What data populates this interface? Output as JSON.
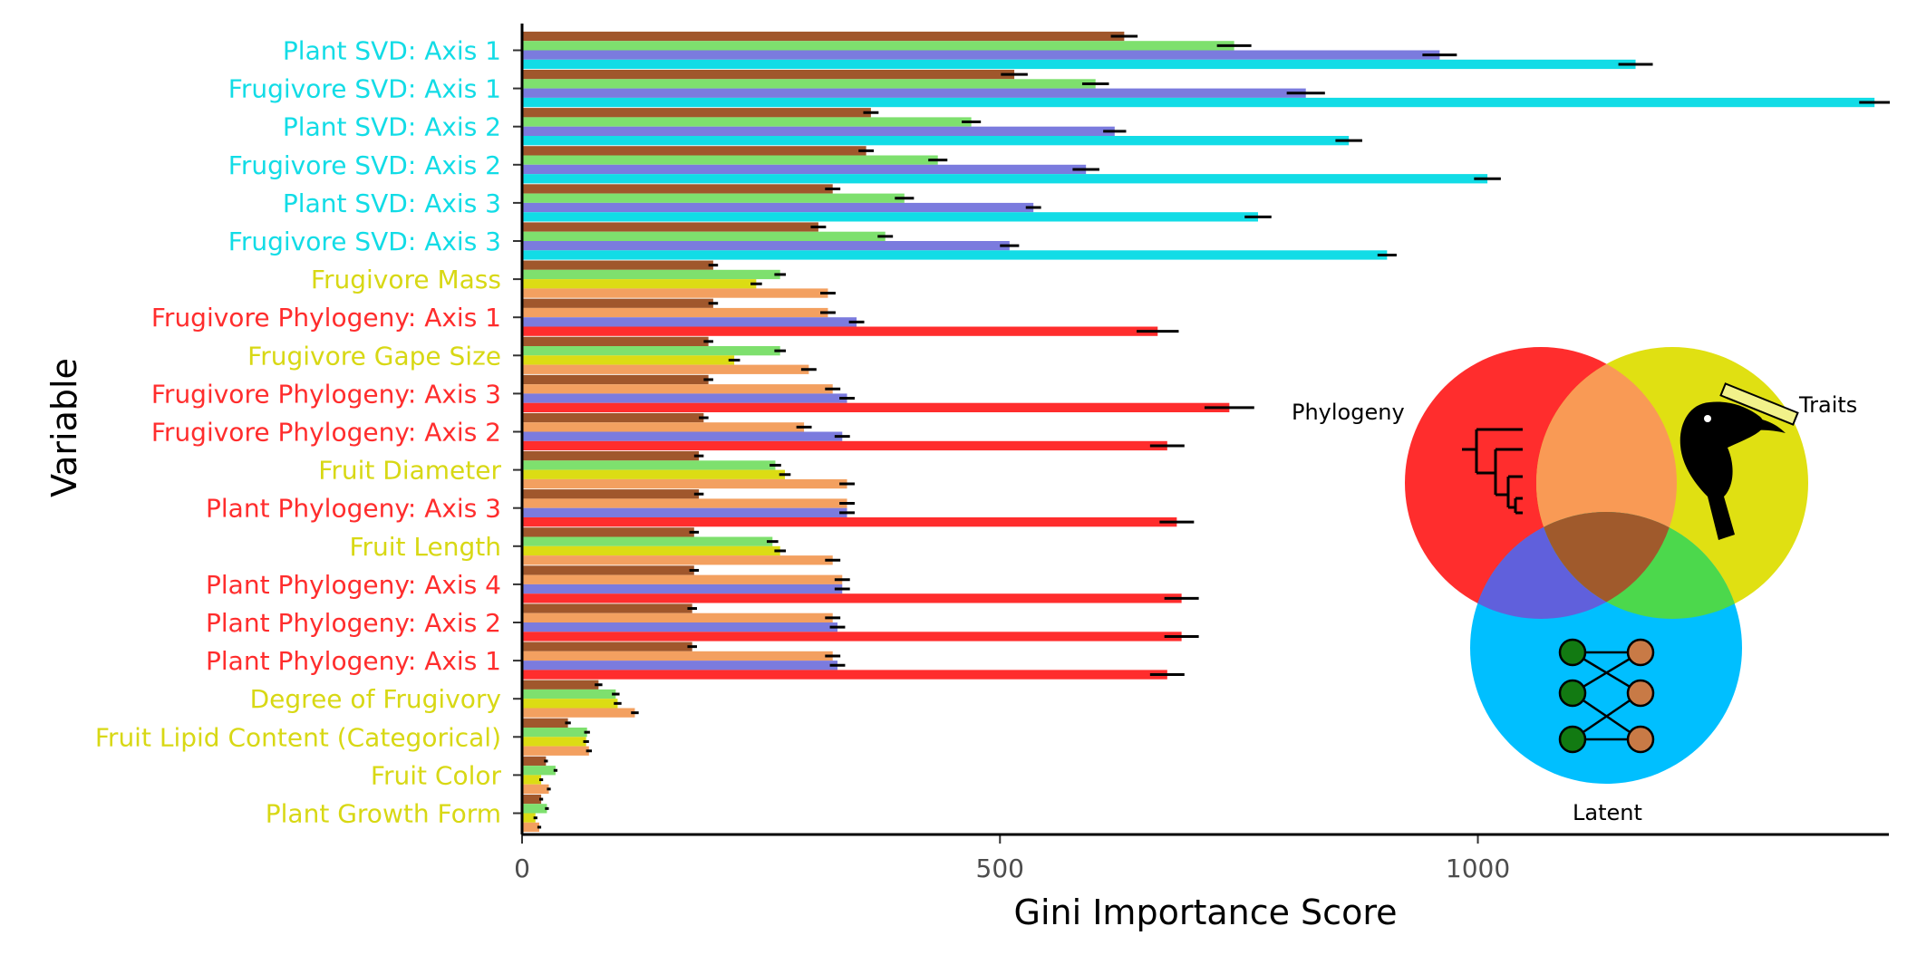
{
  "chart_data": {
    "type": "bar",
    "orientation": "horizontal",
    "xlabel": "Gini Importance Score",
    "ylabel": "Variable",
    "xlim": [
      0,
      1430
    ],
    "xticks": [
      0,
      500,
      1000
    ],
    "grid": false,
    "model_colors": [
      "#a0572c",
      "#7ee06e",
      "#dcdc14",
      "#f3a060",
      "#7b7bde",
      "#ff2d2d",
      "#12dce6"
    ],
    "group_colors": {
      "svd": "#12dce6",
      "trait": "#d8d814",
      "phylogeny": "#ff2d2d"
    },
    "variables": [
      {
        "label": "Plant SVD: Axis 1",
        "group": "svd",
        "bars": [
          {
            "m": 0,
            "v": 630,
            "e": 14
          },
          {
            "m": 1,
            "v": 745,
            "e": 18
          },
          {
            "m": 4,
            "v": 960,
            "e": 18
          },
          {
            "m": 6,
            "v": 1165,
            "e": 18
          }
        ]
      },
      {
        "label": "Frugivore SVD: Axis 1",
        "group": "svd",
        "bars": [
          {
            "m": 0,
            "v": 515,
            "e": 14
          },
          {
            "m": 1,
            "v": 600,
            "e": 14
          },
          {
            "m": 4,
            "v": 820,
            "e": 20
          },
          {
            "m": 6,
            "v": 1415,
            "e": 16
          }
        ]
      },
      {
        "label": "Plant SVD: Axis 2",
        "group": "svd",
        "bars": [
          {
            "m": 0,
            "v": 365,
            "e": 8
          },
          {
            "m": 1,
            "v": 470,
            "e": 10
          },
          {
            "m": 4,
            "v": 620,
            "e": 12
          },
          {
            "m": 6,
            "v": 865,
            "e": 14
          }
        ]
      },
      {
        "label": "Frugivore SVD: Axis 2",
        "group": "svd",
        "bars": [
          {
            "m": 0,
            "v": 360,
            "e": 8
          },
          {
            "m": 1,
            "v": 435,
            "e": 10
          },
          {
            "m": 4,
            "v": 590,
            "e": 14
          },
          {
            "m": 6,
            "v": 1010,
            "e": 14
          }
        ]
      },
      {
        "label": "Plant SVD: Axis 3",
        "group": "svd",
        "bars": [
          {
            "m": 0,
            "v": 325,
            "e": 8
          },
          {
            "m": 1,
            "v": 400,
            "e": 10
          },
          {
            "m": 4,
            "v": 535,
            "e": 8
          },
          {
            "m": 6,
            "v": 770,
            "e": 14
          }
        ]
      },
      {
        "label": "Frugivore SVD: Axis 3",
        "group": "svd",
        "bars": [
          {
            "m": 0,
            "v": 310,
            "e": 8
          },
          {
            "m": 1,
            "v": 380,
            "e": 8
          },
          {
            "m": 4,
            "v": 510,
            "e": 10
          },
          {
            "m": 6,
            "v": 905,
            "e": 10
          }
        ]
      },
      {
        "label": "Frugivore Mass",
        "group": "trait",
        "bars": [
          {
            "m": 0,
            "v": 200,
            "e": 5
          },
          {
            "m": 1,
            "v": 270,
            "e": 6
          },
          {
            "m": 2,
            "v": 245,
            "e": 6
          },
          {
            "m": 3,
            "v": 320,
            "e": 8
          }
        ]
      },
      {
        "label": "Frugivore Phylogeny: Axis 1",
        "group": "phylogeny",
        "bars": [
          {
            "m": 0,
            "v": 200,
            "e": 5
          },
          {
            "m": 3,
            "v": 320,
            "e": 8
          },
          {
            "m": 4,
            "v": 350,
            "e": 8
          },
          {
            "m": 5,
            "v": 665,
            "e": 22
          }
        ]
      },
      {
        "label": "Frugivore Gape Size",
        "group": "trait",
        "bars": [
          {
            "m": 0,
            "v": 195,
            "e": 5
          },
          {
            "m": 1,
            "v": 270,
            "e": 6
          },
          {
            "m": 2,
            "v": 222,
            "e": 6
          },
          {
            "m": 3,
            "v": 300,
            "e": 8
          }
        ]
      },
      {
        "label": "Frugivore Phylogeny: Axis 3",
        "group": "phylogeny",
        "bars": [
          {
            "m": 0,
            "v": 195,
            "e": 5
          },
          {
            "m": 3,
            "v": 325,
            "e": 8
          },
          {
            "m": 4,
            "v": 340,
            "e": 8
          },
          {
            "m": 5,
            "v": 740,
            "e": 26
          }
        ]
      },
      {
        "label": "Frugivore Phylogeny: Axis 2",
        "group": "phylogeny",
        "bars": [
          {
            "m": 0,
            "v": 190,
            "e": 5
          },
          {
            "m": 3,
            "v": 295,
            "e": 8
          },
          {
            "m": 4,
            "v": 335,
            "e": 8
          },
          {
            "m": 5,
            "v": 675,
            "e": 18
          }
        ]
      },
      {
        "label": "Fruit Diameter",
        "group": "trait",
        "bars": [
          {
            "m": 0,
            "v": 185,
            "e": 5
          },
          {
            "m": 1,
            "v": 265,
            "e": 6
          },
          {
            "m": 2,
            "v": 275,
            "e": 6
          },
          {
            "m": 3,
            "v": 340,
            "e": 8
          }
        ]
      },
      {
        "label": "Plant Phylogeny: Axis 3",
        "group": "phylogeny",
        "bars": [
          {
            "m": 0,
            "v": 185,
            "e": 5
          },
          {
            "m": 3,
            "v": 340,
            "e": 8
          },
          {
            "m": 4,
            "v": 340,
            "e": 8
          },
          {
            "m": 5,
            "v": 685,
            "e": 18
          }
        ]
      },
      {
        "label": "Fruit Length",
        "group": "trait",
        "bars": [
          {
            "m": 0,
            "v": 180,
            "e": 5
          },
          {
            "m": 1,
            "v": 262,
            "e": 6
          },
          {
            "m": 2,
            "v": 270,
            "e": 6
          },
          {
            "m": 3,
            "v": 325,
            "e": 8
          }
        ]
      },
      {
        "label": "Plant Phylogeny: Axis 4",
        "group": "phylogeny",
        "bars": [
          {
            "m": 0,
            "v": 180,
            "e": 5
          },
          {
            "m": 3,
            "v": 335,
            "e": 8
          },
          {
            "m": 4,
            "v": 335,
            "e": 8
          },
          {
            "m": 5,
            "v": 690,
            "e": 18
          }
        ]
      },
      {
        "label": "Plant Phylogeny: Axis 2",
        "group": "phylogeny",
        "bars": [
          {
            "m": 0,
            "v": 178,
            "e": 5
          },
          {
            "m": 3,
            "v": 325,
            "e": 8
          },
          {
            "m": 4,
            "v": 330,
            "e": 8
          },
          {
            "m": 5,
            "v": 690,
            "e": 18
          }
        ]
      },
      {
        "label": "Plant Phylogeny: Axis 1",
        "group": "phylogeny",
        "bars": [
          {
            "m": 0,
            "v": 178,
            "e": 5
          },
          {
            "m": 3,
            "v": 325,
            "e": 8
          },
          {
            "m": 4,
            "v": 330,
            "e": 8
          },
          {
            "m": 5,
            "v": 675,
            "e": 18
          }
        ]
      },
      {
        "label": "Degree of Frugivory",
        "group": "trait",
        "bars": [
          {
            "m": 0,
            "v": 80,
            "e": 4
          },
          {
            "m": 1,
            "v": 98,
            "e": 4
          },
          {
            "m": 2,
            "v": 100,
            "e": 4
          },
          {
            "m": 3,
            "v": 118,
            "e": 4
          }
        ]
      },
      {
        "label": "Fruit Lipid Content (Categorical)",
        "group": "trait",
        "bars": [
          {
            "m": 0,
            "v": 48,
            "e": 3
          },
          {
            "m": 1,
            "v": 68,
            "e": 3
          },
          {
            "m": 2,
            "v": 67,
            "e": 3
          },
          {
            "m": 3,
            "v": 70,
            "e": 3
          }
        ]
      },
      {
        "label": "Fruit Color",
        "group": "trait",
        "bars": [
          {
            "m": 0,
            "v": 25,
            "e": 2
          },
          {
            "m": 1,
            "v": 35,
            "e": 2
          },
          {
            "m": 2,
            "v": 20,
            "e": 2
          },
          {
            "m": 3,
            "v": 28,
            "e": 2
          }
        ]
      },
      {
        "label": "Plant Growth Form",
        "group": "trait",
        "bars": [
          {
            "m": 0,
            "v": 20,
            "e": 2
          },
          {
            "m": 1,
            "v": 26,
            "e": 2
          },
          {
            "m": 2,
            "v": 14,
            "e": 2
          },
          {
            "m": 3,
            "v": 18,
            "e": 2
          }
        ]
      }
    ],
    "inset": {
      "labels": {
        "phylogeny": "Phylogeny",
        "traits": "Traits",
        "latent": "Latent"
      },
      "colors": {
        "phylogeny": "#ff2d2d",
        "traits": "#e0e012",
        "latent": "#00bfff",
        "phylo_traits": "#f99a55",
        "phylo_latent": "#6060dc",
        "traits_latent": "#4cd84c",
        "center": "#a05a2c"
      }
    }
  }
}
